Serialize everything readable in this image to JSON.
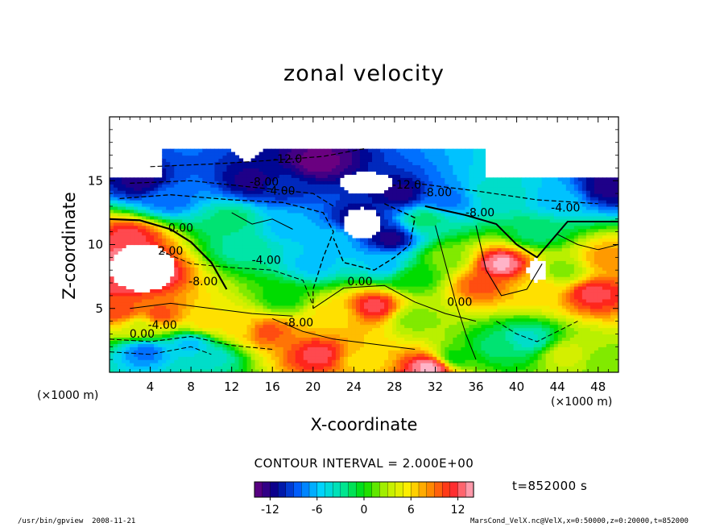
{
  "chart_data": {
    "type": "heatmap",
    "title": "zonal velocity",
    "xlabel": "X-coordinate",
    "ylabel": "Z-coordinate",
    "x_unit_left": "(×1000 m)",
    "x_unit_right": "(×1000 m)",
    "xlim": [
      0,
      50
    ],
    "ylim": [
      0,
      20
    ],
    "x_ticks": [
      4,
      8,
      12,
      16,
      20,
      24,
      28,
      32,
      36,
      40,
      44,
      48
    ],
    "y_ticks": [
      5,
      10,
      15
    ],
    "contour_interval_text": "CONTOUR INTERVAL = 2.000E+00",
    "time_text": "t=852000 s",
    "colorbar": {
      "min": -14,
      "max": 14,
      "step": 1,
      "ticks": [
        -12,
        -6,
        0,
        6,
        12
      ],
      "colors_low_to_high": [
        "#6a0080",
        "#00008c",
        "#0060ff",
        "#00d2ff",
        "#00e6a0",
        "#00dc00",
        "#b4f000",
        "#ffee00",
        "#ff8c00",
        "#ff1e1e",
        "#ffb4c8"
      ]
    },
    "contour_labels": [
      {
        "text": "-12.0",
        "x": 17.5,
        "y": 16.4
      },
      {
        "text": "-8.00",
        "x": 15.2,
        "y": 14.6
      },
      {
        "text": "-4.00",
        "x": 16.8,
        "y": 13.9
      },
      {
        "text": "-12.0",
        "x": 29.2,
        "y": 14.4
      },
      {
        "text": "-8.00",
        "x": 32.2,
        "y": 13.8
      },
      {
        "text": "-4.00",
        "x": 44.8,
        "y": 12.6
      },
      {
        "text": "-8.00",
        "x": 36.4,
        "y": 12.2
      },
      {
        "text": "0.00",
        "x": 7.0,
        "y": 11.0
      },
      {
        "text": "2.00",
        "x": 6.0,
        "y": 9.2
      },
      {
        "text": "-4.00",
        "x": 15.4,
        "y": 8.5
      },
      {
        "text": "-8.00",
        "x": 9.2,
        "y": 6.8
      },
      {
        "text": "0.00",
        "x": 24.6,
        "y": 6.8
      },
      {
        "text": "0.00",
        "x": 34.4,
        "y": 5.2
      },
      {
        "text": "-4.00",
        "x": 5.2,
        "y": 3.4
      },
      {
        "text": "-8.00",
        "x": 18.6,
        "y": 3.6
      },
      {
        "text": "0.00",
        "x": 3.2,
        "y": 2.7
      }
    ],
    "fields": [
      {
        "x": 1.5,
        "y": 9.0,
        "v": 13
      },
      {
        "x": 2.0,
        "y": 10.5,
        "v": 12
      },
      {
        "x": 4.0,
        "y": 7.8,
        "v": 14
      },
      {
        "x": 1.0,
        "y": 7.0,
        "v": 12
      },
      {
        "x": 1.0,
        "y": 4.8,
        "v": 10
      },
      {
        "x": 5.0,
        "y": 4.6,
        "v": 10
      },
      {
        "x": 3.0,
        "y": 3.6,
        "v": 4
      },
      {
        "x": 3.5,
        "y": 1.6,
        "v": -8
      },
      {
        "x": 10.0,
        "y": 1.2,
        "v": -4
      },
      {
        "x": 12.5,
        "y": 3.6,
        "v": 6
      },
      {
        "x": 15.5,
        "y": 3.2,
        "v": 10
      },
      {
        "x": 20.5,
        "y": 1.4,
        "v": 12
      },
      {
        "x": 25.0,
        "y": 1.0,
        "v": 6
      },
      {
        "x": 26.0,
        "y": 5.2,
        "v": 12
      },
      {
        "x": 22.0,
        "y": 4.6,
        "v": 6
      },
      {
        "x": 30.0,
        "y": 4.2,
        "v": 2
      },
      {
        "x": 31.5,
        "y": 0.4,
        "v": 14
      },
      {
        "x": 38.5,
        "y": 8.5,
        "v": 14
      },
      {
        "x": 36.5,
        "y": 6.8,
        "v": 10
      },
      {
        "x": 42.0,
        "y": 6.5,
        "v": 6
      },
      {
        "x": 44.5,
        "y": 8.0,
        "v": 2
      },
      {
        "x": 47.5,
        "y": 6.2,
        "v": 12
      },
      {
        "x": 49.0,
        "y": 9.0,
        "v": 8
      },
      {
        "x": 41.0,
        "y": 2.6,
        "v": -4
      },
      {
        "x": 38.0,
        "y": 2.0,
        "v": -2
      },
      {
        "x": 45.0,
        "y": 1.4,
        "v": 4
      },
      {
        "x": 48.5,
        "y": 0.8,
        "v": 2
      },
      {
        "x": 34.0,
        "y": 1.2,
        "v": 0
      },
      {
        "x": 6.0,
        "y": 13.6,
        "v": -8
      },
      {
        "x": 12.0,
        "y": 12.0,
        "v": -2
      },
      {
        "x": 13.0,
        "y": 9.8,
        "v": -3
      },
      {
        "x": 17.5,
        "y": 11.5,
        "v": -6
      },
      {
        "x": 17.0,
        "y": 14.5,
        "v": -10
      },
      {
        "x": 20.5,
        "y": 16.5,
        "v": -14
      },
      {
        "x": 14.0,
        "y": 15.0,
        "v": -12
      },
      {
        "x": 3.0,
        "y": 15.0,
        "v": -12
      },
      {
        "x": 20.0,
        "y": 8.5,
        "v": -6
      },
      {
        "x": 22.0,
        "y": 10.5,
        "v": -6
      },
      {
        "x": 24.5,
        "y": 12.0,
        "v": -12
      },
      {
        "x": 27.5,
        "y": 10.5,
        "v": -12
      },
      {
        "x": 27.0,
        "y": 8.5,
        "v": -6
      },
      {
        "x": 28.5,
        "y": 14.0,
        "v": -12
      },
      {
        "x": 31.0,
        "y": 12.0,
        "v": -2
      },
      {
        "x": 33.0,
        "y": 13.5,
        "v": -8
      },
      {
        "x": 38.0,
        "y": 14.0,
        "v": -4
      },
      {
        "x": 44.0,
        "y": 13.5,
        "v": -6
      },
      {
        "x": 49.0,
        "y": 14.5,
        "v": -12
      },
      {
        "x": 42.0,
        "y": 11.0,
        "v": -2
      },
      {
        "x": 33.0,
        "y": 9.0,
        "v": 2
      },
      {
        "x": 30.0,
        "y": 7.5,
        "v": 0
      },
      {
        "x": 9.5,
        "y": 4.0,
        "v": 6
      },
      {
        "x": 8.0,
        "y": 2.2,
        "v": -6
      },
      {
        "x": 17.0,
        "y": 5.8,
        "v": 0
      }
    ],
    "blank_regions": [
      {
        "x": [
          0,
          50
        ],
        "y": [
          0,
          20
        ],
        "note": ""
      }
    ]
  },
  "footer": {
    "program": "/usr/bin/gpview",
    "date": "2008-11-21",
    "source": "MarsCond_VelX.nc@VelX,x=0:50000,z=0:20000,t=852000"
  }
}
